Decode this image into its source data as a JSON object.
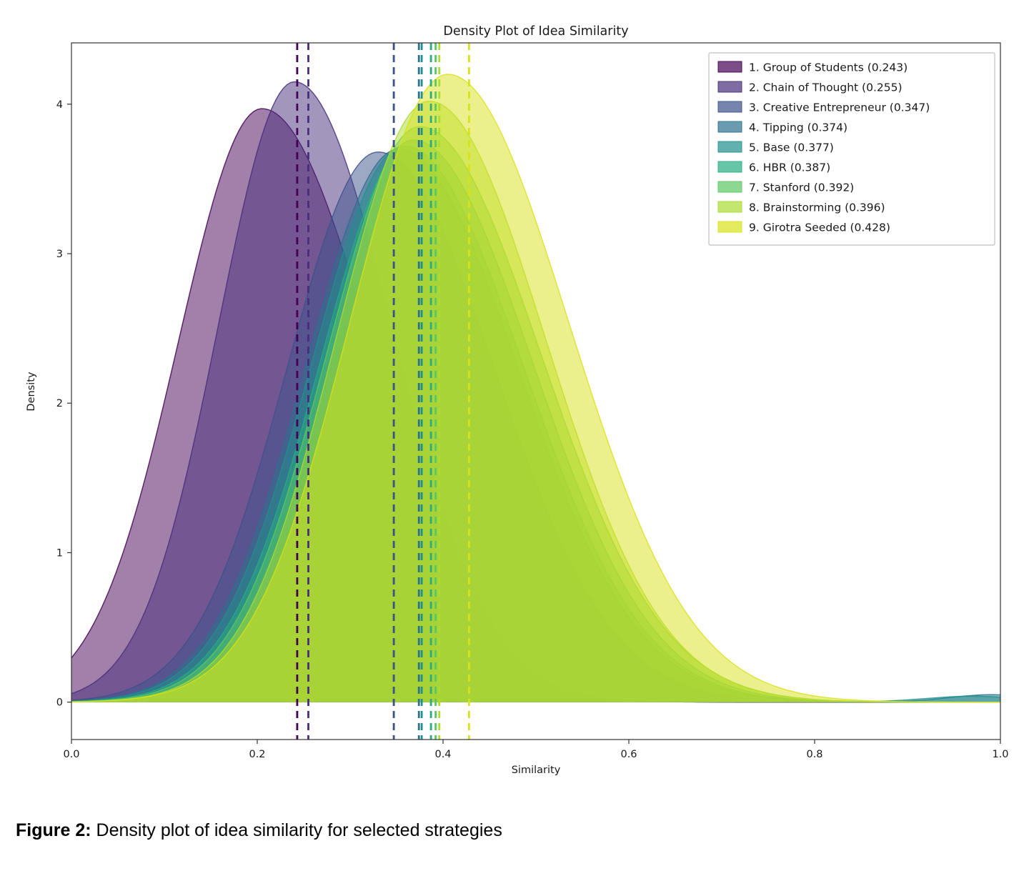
{
  "figure": {
    "caption_label": "Figure 2:",
    "caption_text": " Density plot of idea similarity for selected strategies"
  },
  "chart_data": {
    "type": "area",
    "subtype": "kde-density",
    "title": "Density Plot of Idea Similarity",
    "xlabel": "Similarity",
    "ylabel": "Density",
    "xlim": [
      0.0,
      1.0
    ],
    "ylim": [
      -0.25,
      4.41
    ],
    "x_ticks": [
      0.0,
      0.2,
      0.4,
      0.6,
      0.8,
      1.0
    ],
    "x_tick_labels": [
      "0.0",
      "0.2",
      "0.4",
      "0.6",
      "0.8",
      "1.0"
    ],
    "y_ticks": [
      0,
      1,
      2,
      3,
      4
    ],
    "y_tick_labels": [
      "0",
      "1",
      "2",
      "3",
      "4"
    ],
    "grid": false,
    "legend_position": "upper right",
    "mean_line_style": "dashed",
    "series": [
      {
        "name": "1. Group of Students (0.243)",
        "label": "Group of Students",
        "mean": 0.243,
        "color": "#440154",
        "mode": 0.205,
        "peak": 3.97,
        "sigma_left": 0.09,
        "sigma_right": 0.118
      },
      {
        "name": "2. Chain of Thought (0.255)",
        "label": "Chain of Thought",
        "mean": 0.255,
        "color": "#472d7b",
        "mode": 0.24,
        "peak": 4.15,
        "sigma_left": 0.082,
        "sigma_right": 0.105
      },
      {
        "name": "3. Creative Entrepreneur (0.347)",
        "label": "Creative Entrepreneur",
        "mean": 0.347,
        "color": "#3b518b",
        "mode": 0.33,
        "peak": 3.68,
        "sigma_left": 0.098,
        "sigma_right": 0.125
      },
      {
        "name": "4. Tipping (0.374)",
        "label": "Tipping",
        "mean": 0.374,
        "color": "#2c718e",
        "mode": 0.352,
        "peak": 3.7,
        "sigma_left": 0.1,
        "sigma_right": 0.128,
        "tail": {
          "center": 0.99,
          "height": 0.05,
          "sigma": 0.045
        }
      },
      {
        "name": "5. Base (0.377)",
        "label": "Base",
        "mean": 0.377,
        "color": "#21908c",
        "mode": 0.358,
        "peak": 3.72,
        "sigma_left": 0.1,
        "sigma_right": 0.128,
        "tail": {
          "center": 0.97,
          "height": 0.04,
          "sigma": 0.05
        }
      },
      {
        "name": "6. HBR (0.387)",
        "label": "HBR",
        "mean": 0.387,
        "color": "#27ad81",
        "mode": 0.368,
        "peak": 3.76,
        "sigma_left": 0.1,
        "sigma_right": 0.128
      },
      {
        "name": "7. Stanford (0.392)",
        "label": "Stanford",
        "mean": 0.392,
        "color": "#5cc863",
        "mode": 0.375,
        "peak": 3.85,
        "sigma_left": 0.1,
        "sigma_right": 0.13
      },
      {
        "name": "8. Brainstorming (0.396)",
        "label": "Brainstorming",
        "mean": 0.396,
        "color": "#aadc32",
        "mode": 0.385,
        "peak": 4.02,
        "sigma_left": 0.1,
        "sigma_right": 0.125
      },
      {
        "name": "9. Girotra Seeded (0.428)",
        "label": "Girotra Seeded",
        "mean": 0.428,
        "color": "#d8e219",
        "mode": 0.405,
        "peak": 4.2,
        "sigma_left": 0.105,
        "sigma_right": 0.13
      }
    ]
  }
}
